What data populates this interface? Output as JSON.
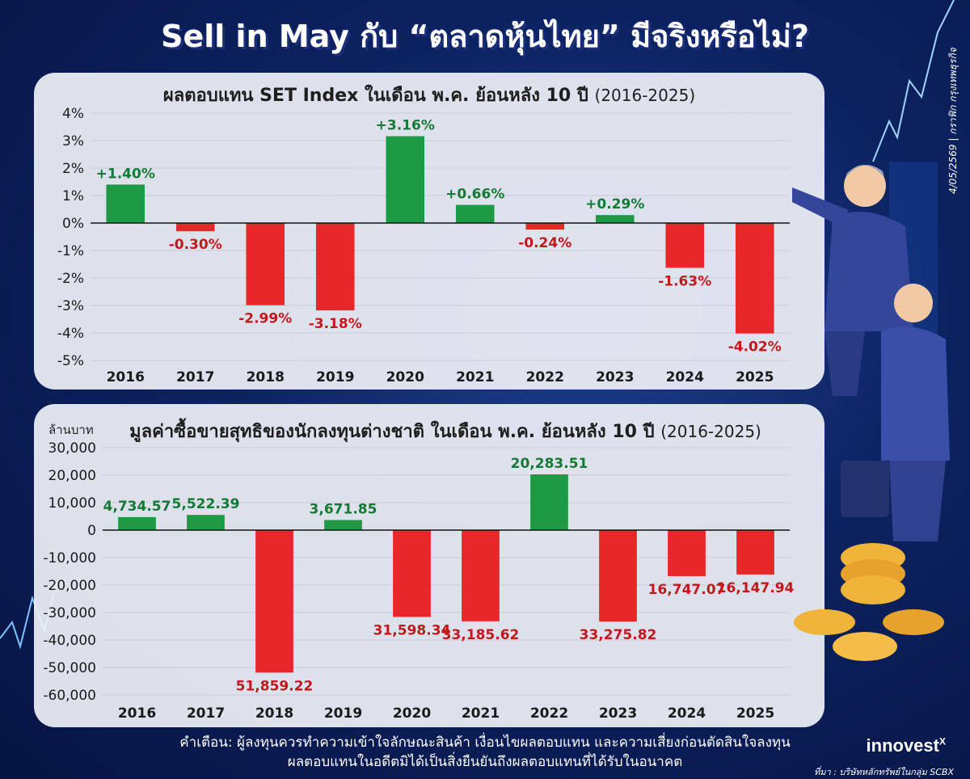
{
  "title": "Sell in May กับ “ตลาดหุ้นไทย” มีจริงหรือไม่?",
  "chart_data": [
    {
      "type": "bar",
      "title": "ผลตอบแทน SET Index ในเดือน พ.ค. ย้อนหลัง 10 ปี",
      "subtitle": "(2016-2025)",
      "categories": [
        "2016",
        "2017",
        "2018",
        "2019",
        "2020",
        "2021",
        "2022",
        "2023",
        "2024",
        "2025"
      ],
      "values": [
        1.4,
        -0.3,
        -2.99,
        -3.18,
        3.16,
        0.66,
        -0.24,
        0.29,
        -1.63,
        -4.02
      ],
      "data_labels": [
        "+1.40%",
        "-0.30%",
        "-2.99%",
        "-3.18%",
        "+3.16%",
        "+0.66%",
        "-0.24%",
        "+0.29%",
        "-1.63%",
        "-4.02%"
      ],
      "y_ticks": [
        "4%",
        "3%",
        "2%",
        "1%",
        "0%",
        "-1%",
        "-2%",
        "-3%",
        "-4%",
        "-5%"
      ],
      "ylim": [
        -5,
        4
      ],
      "grid": true
    },
    {
      "type": "bar",
      "title": "มูลค่าซื้อขายสุทธิของนักลงทุนต่างชาติ ในเดือน พ.ค. ย้อนหลัง 10 ปี",
      "subtitle": "(2016-2025)",
      "ylabel": "ล้านบาท",
      "categories": [
        "2016",
        "2017",
        "2018",
        "2019",
        "2020",
        "2021",
        "2022",
        "2023",
        "2024",
        "2025"
      ],
      "values": [
        4734.57,
        5522.39,
        -51859.22,
        3671.85,
        -31598.34,
        -33185.62,
        20283.51,
        -33275.82,
        -16747.07,
        -16147.94
      ],
      "data_labels": [
        "4,734.57",
        "5,522.39",
        "51,859.22",
        "3,671.85",
        "31,598.34",
        "33,185.62",
        "20,283.51",
        "33,275.82",
        "16,747.07",
        "16,147.94"
      ],
      "y_ticks": [
        "30,000",
        "20,000",
        "10,000",
        "0",
        "-10,000",
        "-20,000",
        "-30,000",
        "-40,000",
        "-50,000",
        "-60,000"
      ],
      "ylim": [
        -60000,
        30000
      ],
      "grid": true
    }
  ],
  "colors": {
    "positive": "#1e9a45",
    "negative": "#e8272a",
    "positive_text": "#137a35",
    "negative_text": "#c2191c"
  },
  "footer": {
    "line1": "คำเตือน: ผู้ลงทุนควรทำความเข้าใจลักษณะสินค้า เงื่อนไขผลตอบแทน และความเสี่ยงก่อนตัดสินใจลงทุน",
    "line2": "ผลตอบแทนในอดีตมิได้เป็นสิ่งยืนยันถึงผลตอบแทนที่ได้รับในอนาคต"
  },
  "source": "ที่มา : บริษัทหลักทรัพย์ในกลุ่ม SCBX",
  "brand": "innovest",
  "brand_sup": "X",
  "side_note": "4/05/2569 | กราฟิก กรุงเทพธุรกิจ"
}
